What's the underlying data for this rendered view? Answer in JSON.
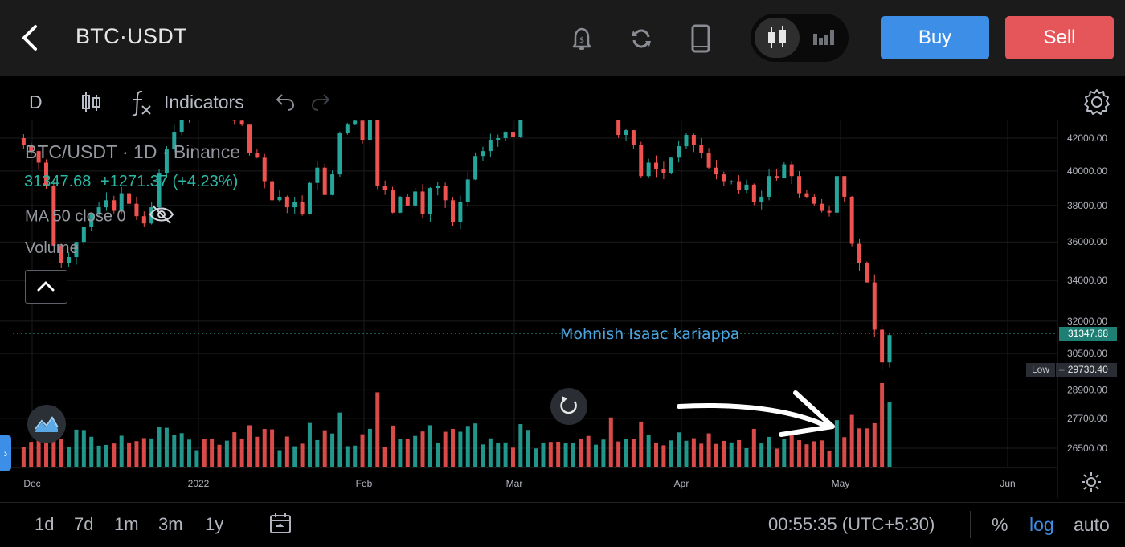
{
  "header": {
    "pair": "BTC·USDT",
    "icons": [
      "back-arrow-icon",
      "price-alert-bell-icon",
      "refresh-icon",
      "phone-icon",
      "candlestick-icon",
      "bar-chart-icon"
    ],
    "buy_label": "Buy",
    "sell_label": "Sell",
    "buy_color": "#3d8ee6",
    "sell_color": "#e5565b"
  },
  "toolbar": {
    "interval": "D",
    "indicators_label": "Indicators",
    "icons": [
      "candle-type-icon",
      "fx-icon",
      "undo-icon",
      "redo-icon",
      "settings-gear-icon"
    ]
  },
  "overlay": {
    "title": "BTC/USDT · 1D · Binance",
    "last": "31347.68",
    "change": "+1271.37 (+4.23%)",
    "ma": "MA 50 close 0",
    "volume": "Volume",
    "watermark": "Mohnish Isaac kariappa"
  },
  "price_scale": {
    "labels": [
      "42000.00",
      "40000.00",
      "38000.00",
      "36000.00",
      "34000.00",
      "32000.00",
      "30500.00",
      "28900.00",
      "27700.00",
      "26500.00"
    ],
    "last_tag": "31347.68",
    "low_label": "Low",
    "low_value": "29730.40"
  },
  "time_scale": {
    "labels": [
      "Dec",
      "2022",
      "Feb",
      "Mar",
      "Apr",
      "May",
      "Jun"
    ]
  },
  "bottom": {
    "ranges": [
      "1d",
      "7d",
      "1m",
      "3m",
      "1y"
    ],
    "clock": "00:55:35 (UTC+5:30)",
    "percent": "%",
    "log": "log",
    "auto": "auto"
  },
  "chart_data": {
    "type": "candlestick",
    "symbol": "BTC/USDT",
    "interval": "1D",
    "y_axis_scale": "log",
    "y_range": [
      25800,
      42500
    ],
    "up_color": "#26a69a",
    "down_color": "#ef5350",
    "approx_close_series": [
      42000,
      41600,
      41200,
      40500,
      39100,
      35800,
      34900,
      35200,
      36000,
      36800,
      37500,
      37900,
      38300,
      37700,
      38700,
      38100,
      37400,
      37000,
      37900,
      39900,
      41300,
      42400,
      43200,
      44100,
      44200,
      43900,
      43600,
      43500,
      44200,
      43100,
      42900,
      41100,
      40800,
      39400,
      38300,
      38500,
      37900,
      38200,
      37500,
      39300,
      40200,
      38600,
      39800,
      42300,
      42900,
      43100,
      41900,
      43500,
      39100,
      38900,
      37600,
      38500,
      38000,
      38800,
      37500,
      39000,
      39100,
      38300,
      37100,
      38200,
      39500,
      40900,
      41200,
      41900,
      42000,
      42400,
      42100,
      44400,
      46500,
      46900,
      47100,
      46400,
      45800,
      46300,
      46600,
      45800,
      44800,
      45500,
      46100,
      43200,
      42200,
      42500,
      41600,
      39700,
      40500,
      40100,
      39900,
      40800,
      41500,
      42200,
      41600,
      41100,
      40200,
      39800,
      39400,
      39400,
      38900,
      39200,
      38200,
      38500,
      39700,
      39600,
      40400,
      39700,
      38700,
      38500,
      38100,
      37700,
      37600,
      39700,
      38500,
      35900,
      34900,
      33900,
      31600,
      30100,
      31347.68
    ],
    "last_price": 31347.68,
    "change": 1271.37,
    "change_pct": 4.23,
    "low": 29730.4
  }
}
